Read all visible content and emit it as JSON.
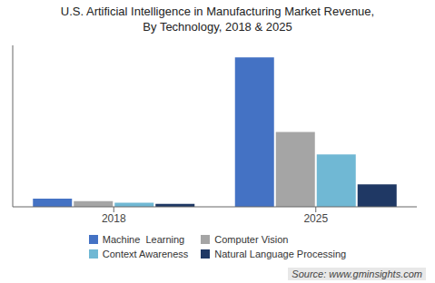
{
  "chart_data": {
    "type": "bar",
    "title": "U.S. Artificial Intelligence in Manufacturing Market Revenue,\nBy Technology, 2018 & 2025",
    "categories": [
      "2018",
      "2025"
    ],
    "series": [
      {
        "name": "Machine  Learning",
        "values": [
          0.055,
          1.0
        ],
        "color": "#4472C4"
      },
      {
        "name": "Computer Vision",
        "values": [
          0.038,
          0.5
        ],
        "color": "#A5A5A5"
      },
      {
        "name": "Context Awareness",
        "values": [
          0.028,
          0.35
        ],
        "color": "#70B8D4"
      },
      {
        "name": "Natural Language Processing",
        "values": [
          0.02,
          0.15
        ],
        "color": "#1F3864"
      }
    ],
    "ylim": [
      0,
      1.08
    ],
    "yticks": [],
    "tick_labels": "x",
    "grid": false,
    "legend": "bottom",
    "annotations": [
      "Source: www.gminsights.com"
    ]
  }
}
